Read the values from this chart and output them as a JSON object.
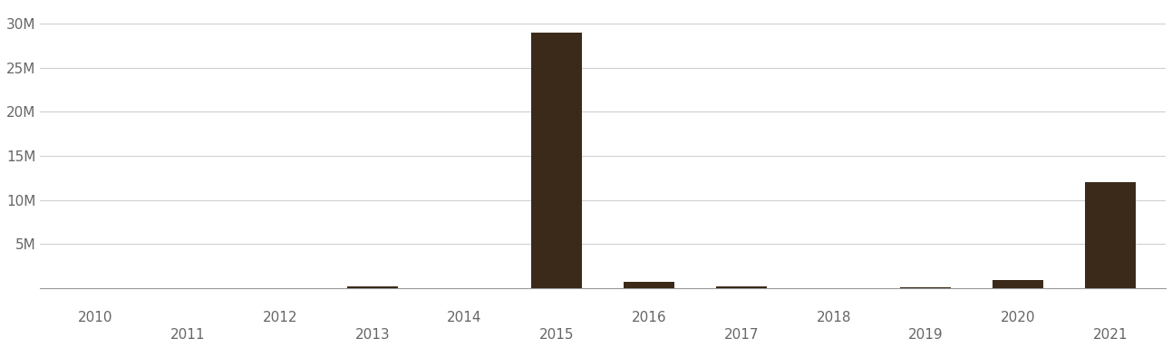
{
  "categories": [
    2010,
    2011,
    2012,
    2013,
    2014,
    2015,
    2016,
    2017,
    2018,
    2019,
    2020,
    2021
  ],
  "values": [
    0,
    0,
    0,
    120000,
    0,
    29000000,
    700000,
    200000,
    0,
    100000,
    900000,
    12000000
  ],
  "bar_color": "#3b2a1a",
  "background_color": "#ffffff",
  "ylim": [
    0,
    32000000
  ],
  "yticks": [
    0,
    5000000,
    10000000,
    15000000,
    20000000,
    25000000,
    30000000
  ],
  "ytick_labels": [
    "",
    "5M",
    "10M",
    "15M",
    "20M",
    "25M",
    "30M"
  ],
  "grid_color": "#d0d0d0",
  "tick_color": "#666666",
  "tick_fontsize": 11,
  "bar_width": 0.55
}
